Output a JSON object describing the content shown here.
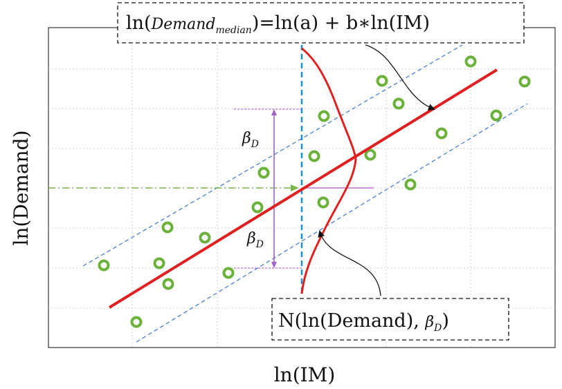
{
  "x_axis_label": "ln(IM)",
  "y_axis_label": "ln(Demand)",
  "median_equation": {
    "prefix": "ln(",
    "italic": "Demand",
    "subscript": "median",
    "suffix": ")=ln(a)  + b∗ln(IM)"
  },
  "distribution_label": {
    "prefix": "N(ln(Demand), ",
    "beta": "β",
    "beta_sub": "D",
    "suffix": ")"
  },
  "beta_upper": {
    "symbol": "β",
    "sub": "D"
  },
  "beta_lower": {
    "symbol": "β",
    "sub": "D"
  },
  "colors": {
    "median_line": "#e02020",
    "bounds": "#4a7fd4",
    "im_line": "#1a8fd0",
    "points": "#6ab23a",
    "beta_arrows": "#a15fcf",
    "median_pointer": "#7ab648",
    "grid": "#cfcfcf"
  },
  "diagram_data": {
    "points": [
      [
        150,
        384
      ],
      [
        197,
        466
      ],
      [
        230,
        381
      ],
      [
        243,
        411
      ],
      [
        242,
        329
      ],
      [
        296,
        344
      ],
      [
        330,
        395
      ],
      [
        372,
        300
      ],
      [
        381,
        250
      ],
      [
        454,
        226
      ],
      [
        468,
        168
      ],
      [
        467,
        293
      ],
      [
        535,
        224
      ],
      [
        552,
        117
      ],
      [
        576,
        150
      ],
      [
        593,
        267
      ],
      [
        638,
        193
      ],
      [
        680,
        89
      ],
      [
        717,
        167
      ],
      [
        758,
        118
      ]
    ]
  }
}
